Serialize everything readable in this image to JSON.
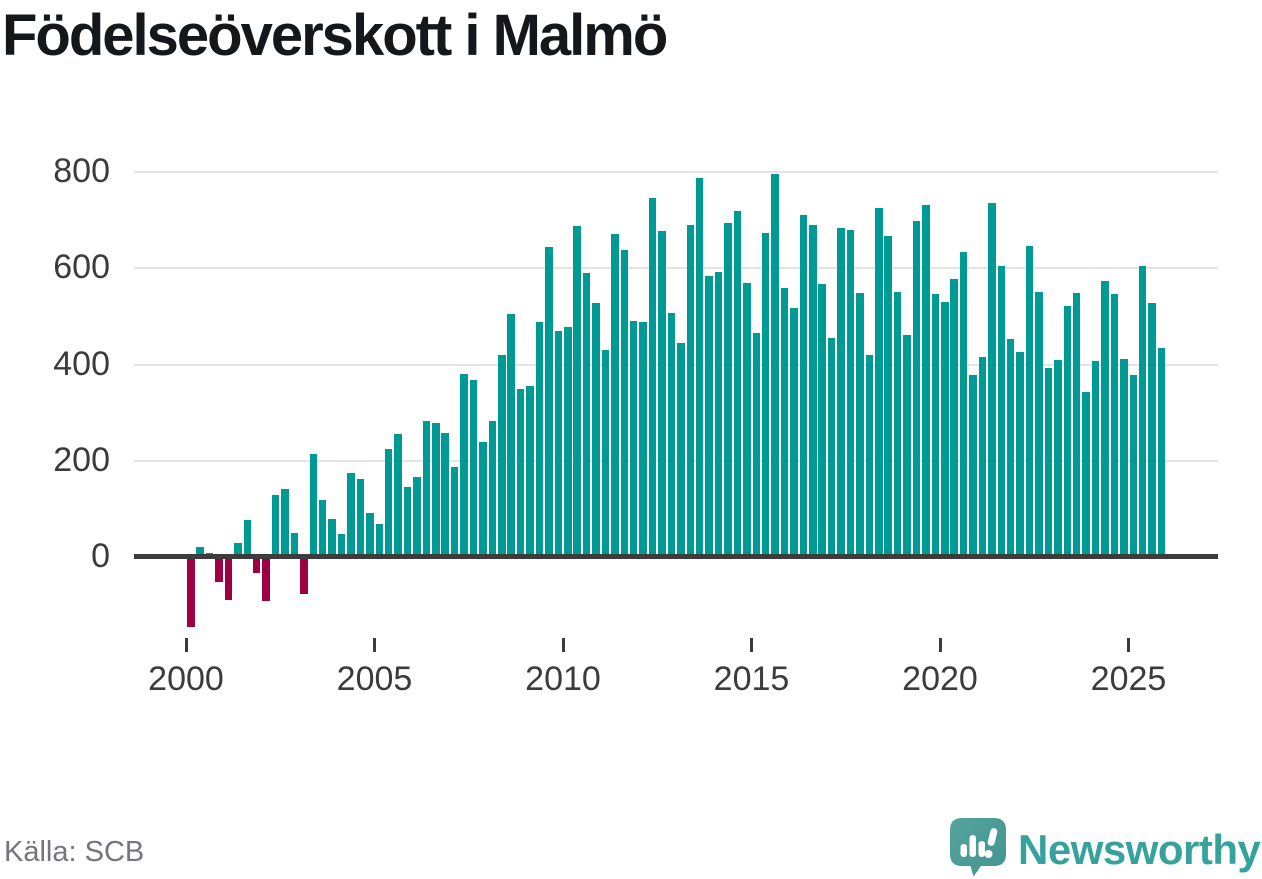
{
  "title": "Födelseöverskott i Malmö",
  "source": "Källa: SCB",
  "branding": {
    "name": "Newsworthy",
    "icon": "newsworthy-speech-bubble-chart-icon"
  },
  "colors": {
    "positive": "#009a95",
    "negative": "#a00041",
    "grid": "#e4e4e4",
    "axis": "#3c3c3c",
    "tick_text": "#3b3b3b",
    "muted_text": "#75757c",
    "logo_teal": "#35a29c",
    "logo_bubble_light": "#55a49e",
    "logo_bubble_dark": "#43948e",
    "title_text": "#15181b"
  },
  "chart_data": {
    "type": "bar",
    "title": "Födelseöverskott i Malmö",
    "frequency": "quarterly",
    "start_year": 2000,
    "end_year": 2025,
    "x_tick_labels": [
      "2000",
      "2005",
      "2010",
      "2015",
      "2020",
      "2025"
    ],
    "y_ticks": [
      0,
      200,
      400,
      600,
      800
    ],
    "ylim": [
      -160,
      830
    ],
    "grid": "horizontal",
    "legend": "none",
    "bar_color_rule": "positive values teal, negative values maroon",
    "series": [
      {
        "name": "Födelseöverskott",
        "values": [
          -145,
          20,
          9,
          -52,
          -89,
          29,
          77,
          -33,
          -91,
          128,
          142,
          50,
          -76,
          215,
          118,
          80,
          48,
          175,
          163,
          91,
          68,
          224,
          255,
          146,
          167,
          283,
          279,
          257,
          186,
          381,
          368,
          239,
          283,
          420,
          505,
          350,
          355,
          488,
          645,
          469,
          477,
          687,
          590,
          528,
          430,
          672,
          637,
          490,
          488,
          745,
          678,
          507,
          444,
          689,
          787,
          584,
          592,
          693,
          720,
          570,
          465,
          674,
          795,
          560,
          517,
          710,
          690,
          567,
          456,
          683,
          680,
          549,
          420,
          725,
          668,
          550,
          462,
          698,
          732,
          547,
          530,
          578,
          633,
          379,
          416,
          736,
          605,
          452,
          425,
          647,
          550,
          392,
          409,
          521,
          549,
          343,
          407,
          573,
          546,
          411,
          378,
          604,
          528,
          435
        ]
      }
    ]
  }
}
